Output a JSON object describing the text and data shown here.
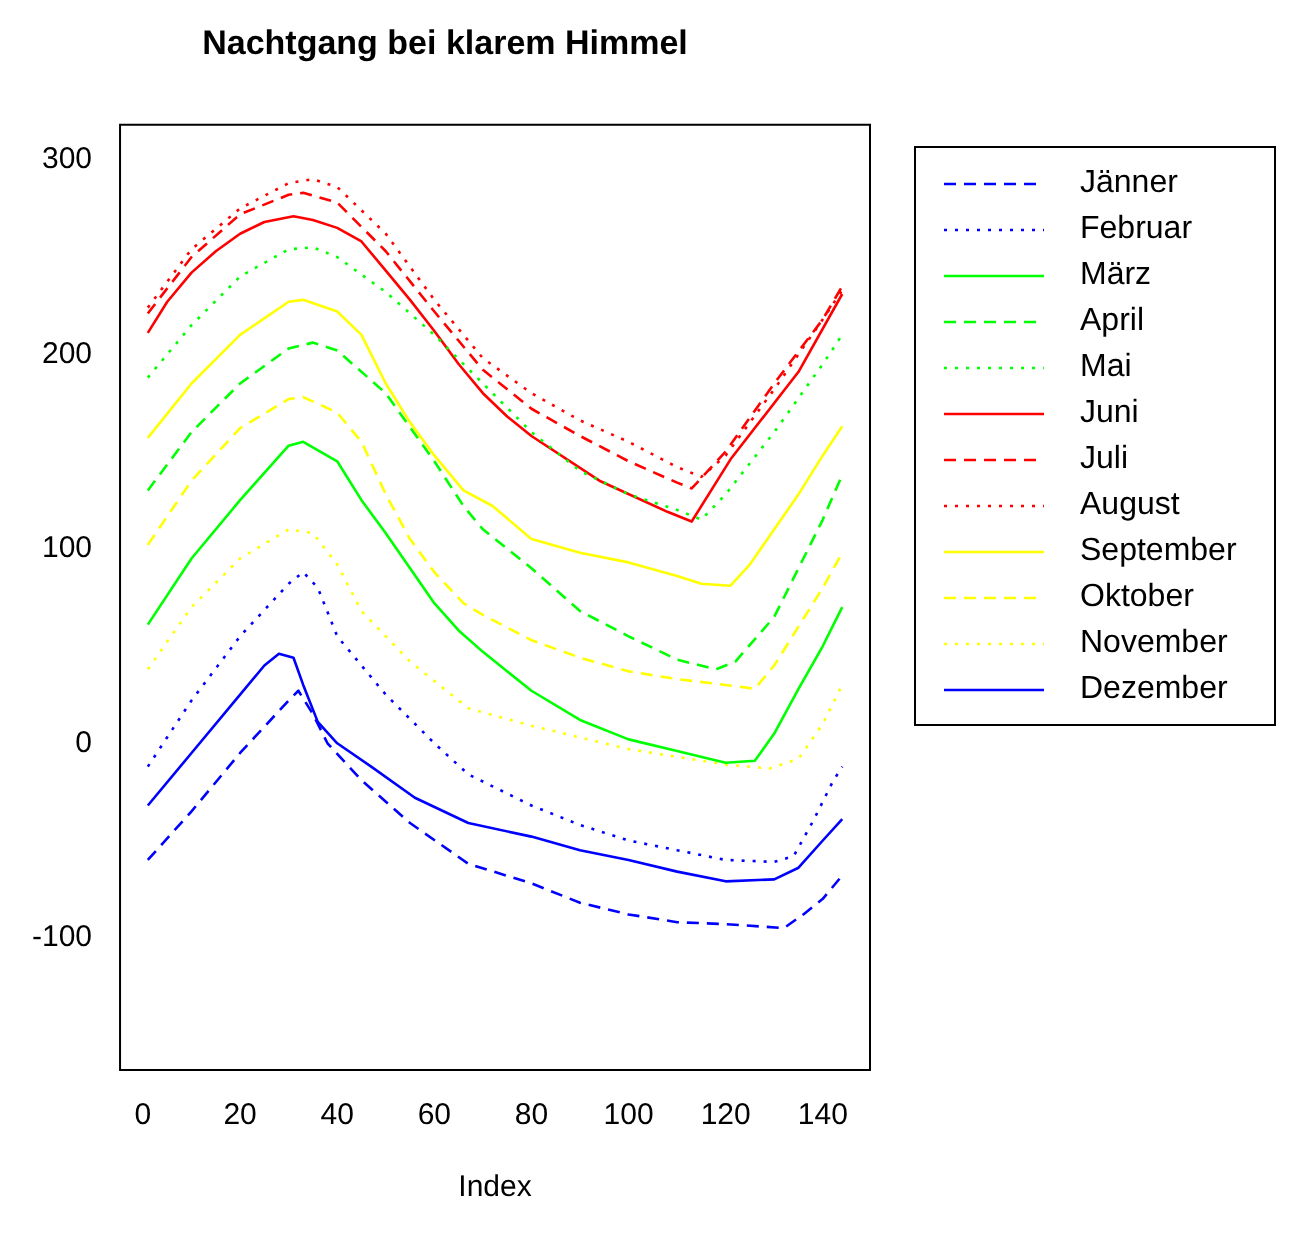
{
  "chart_data": {
    "type": "line",
    "title": "Nachtgang bei klarem Himmel",
    "xlabel": "Index",
    "xlim": [
      -4.72,
      149.72
    ],
    "xticks": [
      0,
      20,
      40,
      60,
      80,
      100,
      120,
      140
    ],
    "ylim": [
      -168,
      318
    ],
    "yticks": [
      -100,
      0,
      100,
      200,
      300
    ],
    "grid": false,
    "legend": "right",
    "marker": "none",
    "series": [
      {
        "name": "Jänner",
        "color": "#0000ff",
        "line_style": "dashed",
        "x": [
          1,
          10,
          20,
          30,
          32,
          35,
          38,
          45,
          55,
          67,
          80,
          90,
          100,
          110,
          120,
          132,
          136,
          140,
          144
        ],
        "values": [
          -60,
          -35,
          -5,
          22,
          27,
          15,
          0,
          -19,
          -41,
          -62,
          -72,
          -82,
          -88,
          -92,
          -93,
          -95,
          -88,
          -80,
          -68
        ]
      },
      {
        "name": "Februar",
        "color": "#0000ff",
        "line_style": "dotted",
        "x": [
          1,
          10,
          20,
          30,
          33,
          36,
          40,
          45,
          50,
          60,
          67,
          80,
          90,
          100,
          110,
          120,
          130,
          134,
          138,
          142,
          144
        ],
        "values": [
          -12,
          22,
          55,
          82,
          88,
          80,
          55,
          40,
          25,
          0,
          -16,
          -32,
          -42,
          -50,
          -55,
          -60,
          -61,
          -58,
          -40,
          -20,
          -12
        ]
      },
      {
        "name": "März",
        "color": "#00ff00",
        "line_style": "solid",
        "x": [
          1,
          10,
          20,
          30,
          33,
          40,
          45,
          50,
          55,
          60,
          65,
          70,
          80,
          90,
          100,
          110,
          120,
          126,
          130,
          135,
          140,
          144
        ],
        "values": [
          61,
          95,
          125,
          153,
          155,
          145,
          125,
          108,
          90,
          72,
          58,
          47,
          27,
          12,
          2,
          -4,
          -10,
          -9,
          5,
          28,
          50,
          70
        ]
      },
      {
        "name": "April",
        "color": "#00ff00",
        "line_style": "dashed",
        "x": [
          1,
          10,
          20,
          30,
          35,
          40,
          50,
          60,
          66,
          70,
          80,
          90,
          100,
          110,
          118,
          122,
          130,
          135,
          140,
          144
        ],
        "values": [
          130,
          160,
          185,
          203,
          206,
          202,
          180,
          145,
          122,
          110,
          90,
          68,
          55,
          43,
          38,
          42,
          65,
          90,
          115,
          138
        ]
      },
      {
        "name": "Mai",
        "color": "#00ff00",
        "line_style": "dotted",
        "x": [
          1,
          10,
          20,
          30,
          35,
          40,
          50,
          60,
          70,
          80,
          90,
          100,
          110,
          115,
          120,
          130,
          140,
          144
        ],
        "values": [
          188,
          215,
          240,
          254,
          255,
          250,
          232,
          210,
          185,
          160,
          140,
          128,
          120,
          115,
          128,
          160,
          195,
          210
        ]
      },
      {
        "name": "Juni",
        "color": "#ff0000",
        "line_style": "solid",
        "x": [
          1,
          5,
          10,
          15,
          20,
          25,
          31,
          35,
          40,
          45,
          50,
          55,
          60,
          65,
          70,
          75,
          80,
          94,
          108,
          113,
          121,
          135,
          144
        ],
        "values": [
          211,
          227,
          242,
          253,
          262,
          268,
          271,
          269,
          265,
          258,
          243,
          228,
          212,
          195,
          180,
          168,
          158,
          135,
          119,
          114,
          146,
          191,
          231
        ]
      },
      {
        "name": "Juli",
        "color": "#ff0000",
        "line_style": "dashed",
        "x": [
          1,
          10,
          20,
          30,
          33,
          40,
          50,
          60,
          70,
          80,
          90,
          100,
          110,
          113,
          120,
          130,
          140,
          144
        ],
        "values": [
          221,
          250,
          272,
          282,
          283,
          278,
          253,
          222,
          192,
          172,
          158,
          145,
          134,
          131,
          150,
          185,
          218,
          235
        ]
      },
      {
        "name": "August",
        "color": "#ff0000",
        "line_style": "dotted",
        "x": [
          1,
          10,
          20,
          30,
          35,
          40,
          50,
          60,
          70,
          80,
          90,
          100,
          110,
          115,
          120,
          130,
          140,
          144
        ],
        "values": [
          224,
          254,
          275,
          288,
          290,
          286,
          262,
          228,
          198,
          180,
          166,
          155,
          142,
          137,
          148,
          182,
          218,
          233
        ]
      },
      {
        "name": "September",
        "color": "#ffff00",
        "line_style": "solid",
        "x": [
          1,
          10,
          20,
          30,
          33,
          40,
          45,
          50,
          55,
          60,
          66,
          72,
          80,
          90,
          100,
          110,
          115,
          121,
          125,
          130,
          135,
          140,
          144
        ],
        "values": [
          157,
          185,
          210,
          227,
          228,
          222,
          210,
          185,
          165,
          148,
          130,
          122,
          105,
          98,
          93,
          86,
          82,
          81,
          92,
          110,
          128,
          148,
          163
        ]
      },
      {
        "name": "Oktober",
        "color": "#ffff00",
        "line_style": "dashed",
        "x": [
          1,
          10,
          20,
          30,
          33,
          40,
          45,
          50,
          55,
          60,
          66,
          70,
          80,
          90,
          100,
          110,
          120,
          126,
          130,
          135,
          140,
          144
        ],
        "values": [
          102,
          135,
          162,
          177,
          178,
          170,
          155,
          128,
          105,
          88,
          72,
          66,
          53,
          44,
          37,
          33,
          30,
          28,
          40,
          60,
          80,
          98
        ]
      },
      {
        "name": "November",
        "color": "#ffff00",
        "line_style": "dotted",
        "x": [
          1,
          10,
          20,
          30,
          35,
          40,
          45,
          50,
          55,
          60,
          67,
          80,
          90,
          100,
          110,
          120,
          129,
          135,
          140,
          144
        ],
        "values": [
          38,
          70,
          95,
          110,
          108,
          92,
          68,
          55,
          42,
          32,
          18,
          9,
          3,
          -3,
          -7,
          -11,
          -13,
          -8,
          10,
          30
        ]
      },
      {
        "name": "Dezember",
        "color": "#0000ff",
        "line_style": "solid",
        "x": [
          1,
          10,
          20,
          25,
          28,
          31,
          33,
          36,
          40,
          47,
          56,
          67,
          80,
          90,
          100,
          110,
          120,
          130,
          135,
          140,
          144
        ],
        "values": [
          -32,
          -5,
          25,
          40,
          46,
          44,
          30,
          11,
          0,
          -12,
          -28,
          -41,
          -48,
          -55,
          -60,
          -66,
          -71,
          -70,
          -64,
          -50,
          -39
        ]
      }
    ]
  }
}
